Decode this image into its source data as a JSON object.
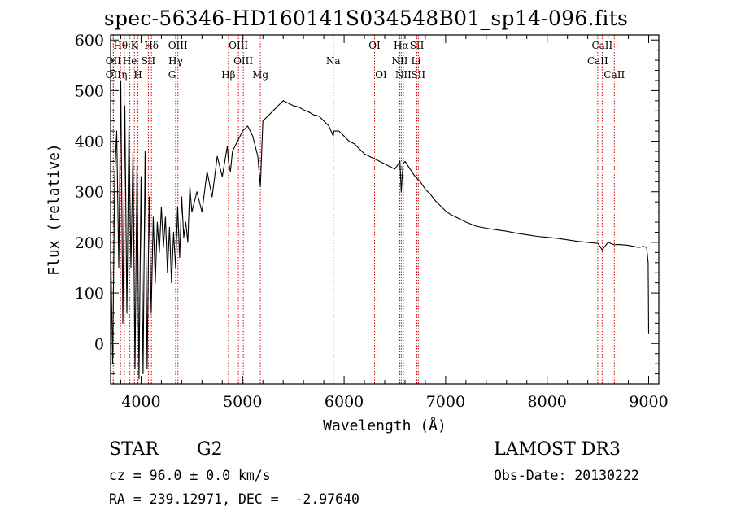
{
  "header": {
    "title": "spec-56346-HD160141S034548B01_sp14-096.fits"
  },
  "info": {
    "class_label": "STAR",
    "subclass_label": "G2",
    "survey": "LAMOST DR3",
    "redshift_line": "cz = 96.0 ± 0.0 km/s",
    "obs_date_line": "Obs-Date: 20130222",
    "coords_line": "RA = 239.12971, DEC =  -2.97640"
  },
  "chart_data": {
    "type": "line",
    "title": "spec-56346-HD160141S034548B01_sp14-096.fits",
    "xlabel": "Wavelength (Å)",
    "ylabel": "Flux (relative)",
    "xlim": [
      3700,
      9100
    ],
    "ylim": [
      -80,
      610
    ],
    "x_ticks": [
      4000,
      5000,
      6000,
      7000,
      8000,
      9000
    ],
    "y_ticks": [
      0,
      100,
      200,
      300,
      400,
      500,
      600
    ],
    "grid": false,
    "series": [
      {
        "x": [
          3700,
          3720,
          3740,
          3760,
          3780,
          3800,
          3820,
          3840,
          3860,
          3880,
          3900,
          3920,
          3940,
          3960,
          3980,
          4000,
          4020,
          4040,
          4060,
          4080,
          4100,
          4120,
          4140,
          4160,
          4180,
          4200,
          4220,
          4240,
          4260,
          4280,
          4300,
          4320,
          4340,
          4360,
          4380,
          4400,
          4420,
          4440,
          4460,
          4480,
          4500,
          4550,
          4600,
          4650,
          4700,
          4750,
          4800,
          4850,
          4861,
          4880,
          4900,
          4950,
          5000,
          5050,
          5100,
          5150,
          5175,
          5200,
          5250,
          5300,
          5350,
          5400,
          5450,
          5500,
          5550,
          5600,
          5650,
          5700,
          5750,
          5800,
          5850,
          5893,
          5900,
          5950,
          6000,
          6050,
          6100,
          6150,
          6200,
          6250,
          6300,
          6350,
          6400,
          6450,
          6500,
          6550,
          6563,
          6580,
          6600,
          6650,
          6700,
          6750,
          6800,
          6850,
          6900,
          6950,
          7000,
          7050,
          7100,
          7150,
          7200,
          7300,
          7400,
          7500,
          7600,
          7700,
          7800,
          7900,
          8000,
          8100,
          8200,
          8300,
          8400,
          8500,
          8542,
          8600,
          8662,
          8700,
          8800,
          8900,
          8950,
          8980,
          8995,
          9000
        ],
        "values": [
          200,
          -40,
          330,
          420,
          150,
          520,
          40,
          470,
          60,
          430,
          150,
          380,
          -50,
          360,
          -70,
          330,
          -60,
          380,
          -50,
          290,
          60,
          250,
          120,
          240,
          180,
          270,
          190,
          250,
          140,
          230,
          120,
          220,
          150,
          270,
          170,
          290,
          210,
          240,
          200,
          310,
          260,
          300,
          260,
          340,
          290,
          370,
          330,
          390,
          360,
          340,
          380,
          400,
          420,
          430,
          410,
          370,
          310,
          440,
          450,
          460,
          470,
          480,
          475,
          470,
          468,
          462,
          458,
          452,
          450,
          440,
          430,
          410,
          420,
          420,
          410,
          400,
          395,
          385,
          375,
          370,
          365,
          360,
          355,
          350,
          345,
          360,
          300,
          355,
          360,
          345,
          330,
          320,
          305,
          295,
          282,
          272,
          262,
          255,
          250,
          245,
          240,
          232,
          228,
          225,
          222,
          218,
          215,
          212,
          210,
          208,
          205,
          202,
          200,
          198,
          185,
          200,
          195,
          196,
          194,
          190,
          192,
          190,
          160,
          20
        ]
      }
    ],
    "line_markers": [
      {
        "label": "Hθ",
        "x": 3798,
        "row": 0
      },
      {
        "label": "K",
        "x": 3934,
        "row": 0
      },
      {
        "label": "Hδ",
        "x": 4102,
        "row": 0
      },
      {
        "label": "OIII",
        "x": 4363,
        "row": 0
      },
      {
        "label": "OIII",
        "x": 4959,
        "row": 0
      },
      {
        "label": "OI",
        "x": 6300,
        "row": 0
      },
      {
        "label": "Hα",
        "x": 6563,
        "row": 0
      },
      {
        "label": "SII",
        "x": 6717,
        "row": 0
      },
      {
        "label": "CaII",
        "x": 8542,
        "row": 0
      },
      {
        "label": "OII",
        "x": 3727,
        "row": 1
      },
      {
        "label": "He",
        "x": 3889,
        "row": 1
      },
      {
        "label": "SII",
        "x": 4072,
        "row": 1
      },
      {
        "label": "Hγ",
        "x": 4340,
        "row": 1
      },
      {
        "label": "OIII",
        "x": 5007,
        "row": 1
      },
      {
        "label": "Na",
        "x": 5893,
        "row": 1
      },
      {
        "label": "NII",
        "x": 6548,
        "row": 1
      },
      {
        "label": "Li",
        "x": 6708,
        "row": 1
      },
      {
        "label": "CaII",
        "x": 8498,
        "row": 1
      },
      {
        "label": "OII",
        "x": 3727,
        "row": 2
      },
      {
        "label": "η",
        "x": 3835,
        "row": 2
      },
      {
        "label": "H",
        "x": 3969,
        "row": 2
      },
      {
        "label": "G",
        "x": 4305,
        "row": 2
      },
      {
        "label": "Hβ",
        "x": 4861,
        "row": 2
      },
      {
        "label": "Mg",
        "x": 5175,
        "row": 2
      },
      {
        "label": "OI",
        "x": 6364,
        "row": 2
      },
      {
        "label": "NII",
        "x": 6583,
        "row": 2
      },
      {
        "label": "SII",
        "x": 6731,
        "row": 2
      },
      {
        "label": "CaII",
        "x": 8662,
        "row": 2
      }
    ],
    "marker_color": "#cc0000"
  }
}
